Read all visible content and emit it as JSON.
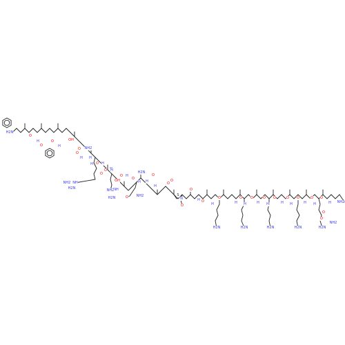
{
  "figure": {
    "description_type": "chemical-structure",
    "colors": {
      "bond": "#222222",
      "oxygen": "#ff0000",
      "nitrogen": "#3333ff",
      "carbon_text": "#222222"
    },
    "atom_labels": [
      {
        "text": "H2N",
        "element": "N"
      },
      {
        "text": "O",
        "element": "O"
      },
      {
        "text": "H",
        "element": "N"
      },
      {
        "text": "O",
        "element": "O"
      },
      {
        "text": "H",
        "element": "N"
      },
      {
        "text": "O",
        "element": "O"
      },
      {
        "text": "OH",
        "element": "O"
      },
      {
        "text": "O",
        "element": "O"
      },
      {
        "text": "H",
        "element": "N"
      },
      {
        "text": "O",
        "element": "O"
      },
      {
        "text": "H",
        "element": "N"
      },
      {
        "text": "O",
        "element": "O"
      },
      {
        "text": "H",
        "element": "N"
      },
      {
        "text": "O",
        "element": "O"
      },
      {
        "text": "H",
        "element": "N"
      },
      {
        "text": "NH",
        "element": "N"
      },
      {
        "text": "H2N",
        "element": "N"
      },
      {
        "text": "NH2",
        "element": "N"
      },
      {
        "text": "H",
        "element": "N"
      },
      {
        "text": "O",
        "element": "O"
      },
      {
        "text": "NH2",
        "element": "N"
      },
      {
        "text": "H",
        "element": "N"
      },
      {
        "text": "O",
        "element": "O"
      },
      {
        "text": "OH",
        "element": "O"
      },
      {
        "text": "H",
        "element": "N"
      },
      {
        "text": "O",
        "element": "O"
      },
      {
        "text": "H",
        "element": "N"
      },
      {
        "text": "NH",
        "element": "N"
      },
      {
        "text": "H2N",
        "element": "N"
      },
      {
        "text": "NH2",
        "element": "N"
      },
      {
        "text": "O",
        "element": "O"
      },
      {
        "text": "H",
        "element": "N"
      },
      {
        "text": "O",
        "element": "O"
      },
      {
        "text": "NH2",
        "element": "N"
      },
      {
        "text": "H",
        "element": "N"
      },
      {
        "text": "O",
        "element": "O"
      },
      {
        "text": "H2N",
        "element": "N"
      },
      {
        "text": "S",
        "element": "S"
      },
      {
        "text": "O",
        "element": "O"
      },
      {
        "text": "N",
        "element": "N"
      },
      {
        "text": "O",
        "element": "O"
      },
      {
        "text": "O",
        "element": "O"
      },
      {
        "text": "H",
        "element": "N"
      },
      {
        "text": "O",
        "element": "O"
      },
      {
        "text": "H",
        "element": "N"
      },
      {
        "text": "O",
        "element": "O"
      },
      {
        "text": "H2N",
        "element": "N"
      },
      {
        "text": "H",
        "element": "N"
      },
      {
        "text": "O",
        "element": "O"
      },
      {
        "text": "H",
        "element": "N"
      },
      {
        "text": "O",
        "element": "O"
      },
      {
        "text": "H2N",
        "element": "N"
      },
      {
        "text": "H",
        "element": "N"
      },
      {
        "text": "O",
        "element": "O"
      },
      {
        "text": "H",
        "element": "N"
      },
      {
        "text": "O",
        "element": "O"
      },
      {
        "text": "H2N",
        "element": "N"
      },
      {
        "text": "H",
        "element": "N"
      },
      {
        "text": "O",
        "element": "O"
      },
      {
        "text": "H",
        "element": "N"
      },
      {
        "text": "O",
        "element": "O"
      },
      {
        "text": "H2N",
        "element": "N"
      },
      {
        "text": "H",
        "element": "N"
      },
      {
        "text": "O",
        "element": "O"
      },
      {
        "text": "H",
        "element": "N"
      },
      {
        "text": "O",
        "element": "O"
      },
      {
        "text": "H2N",
        "element": "N"
      },
      {
        "text": "H",
        "element": "N"
      },
      {
        "text": "O",
        "element": "O"
      },
      {
        "text": "NH2",
        "element": "N"
      },
      {
        "text": "O",
        "element": "O"
      },
      {
        "text": "NH2",
        "element": "N"
      }
    ]
  }
}
